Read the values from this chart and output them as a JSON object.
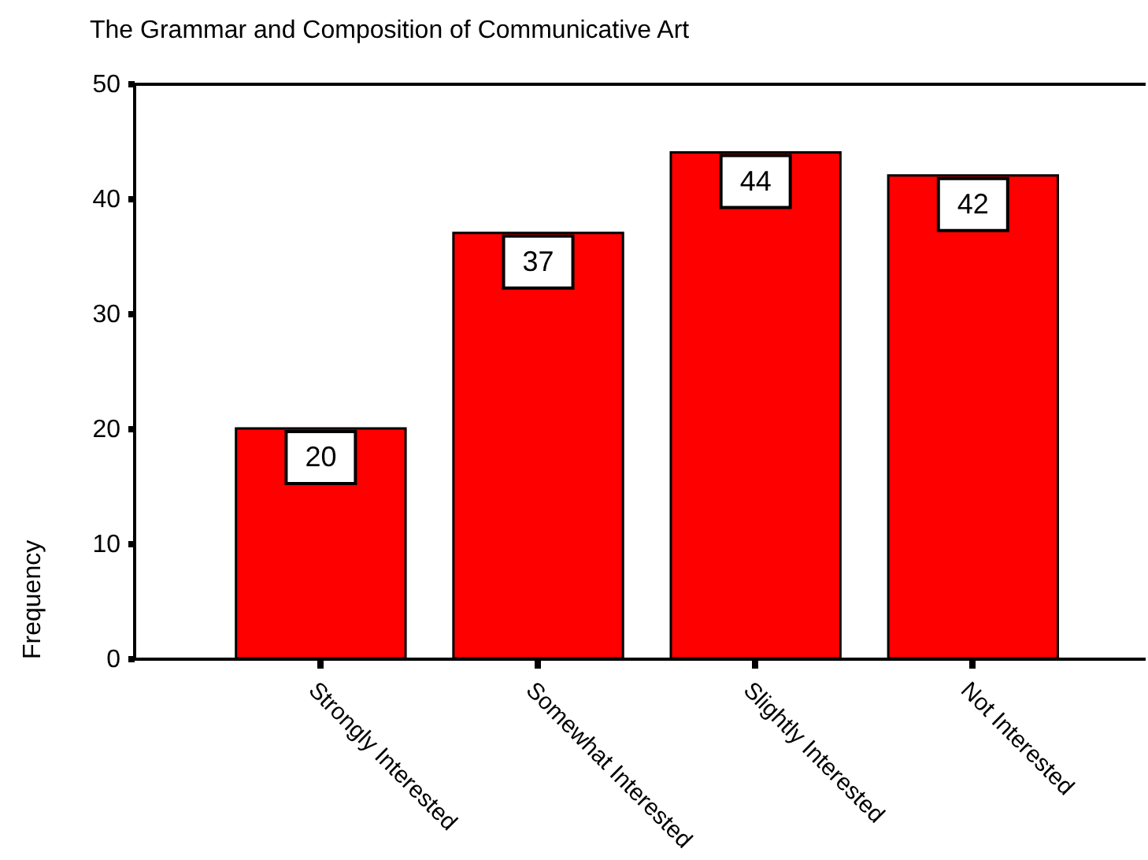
{
  "chart_data": {
    "type": "bar",
    "title": "The Grammar and Composition of Communicative Art",
    "ylabel": "Frequency",
    "categories": [
      "Strongly Interested",
      "Somewhat Interested",
      "Slightly Interested",
      "Not Interested"
    ],
    "values": [
      20,
      37,
      44,
      42
    ],
    "color": "#ff0000",
    "ylim": [
      0,
      50
    ],
    "yticks": [
      0,
      10,
      20,
      30,
      40,
      50
    ],
    "data_labels": true
  }
}
